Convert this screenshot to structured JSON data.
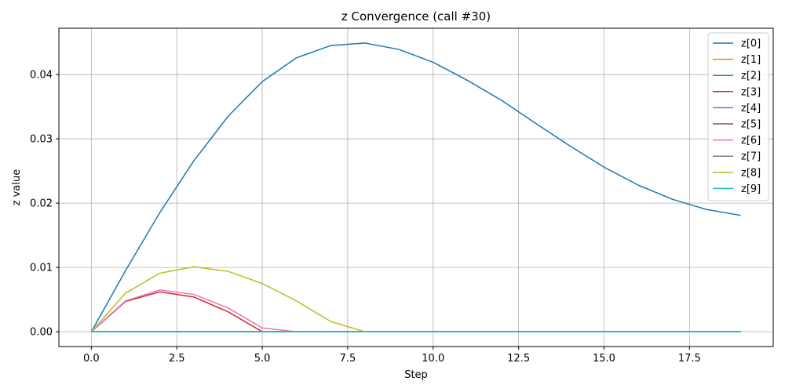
{
  "chart_data": {
    "type": "line",
    "title": "z Convergence (call #30)",
    "xlabel": "Step",
    "ylabel": "z value",
    "xlim": [
      -0.95,
      19.95
    ],
    "ylim": [
      -0.0023,
      0.0472
    ],
    "xticks": [
      0.0,
      2.5,
      5.0,
      7.5,
      10.0,
      12.5,
      15.0,
      17.5
    ],
    "xtick_labels": [
      "0.0",
      "2.5",
      "5.0",
      "7.5",
      "10.0",
      "12.5",
      "15.0",
      "17.5"
    ],
    "yticks": [
      0.0,
      0.01,
      0.02,
      0.03,
      0.04
    ],
    "ytick_labels": [
      "0.00",
      "0.01",
      "0.02",
      "0.03",
      "0.04"
    ],
    "grid": true,
    "legend_position": "top-right",
    "x": [
      0,
      1,
      2,
      3,
      4,
      5,
      6,
      7,
      8,
      9,
      10,
      11,
      12,
      13,
      14,
      15,
      16,
      17,
      18,
      19
    ],
    "series": [
      {
        "name": "z[0]",
        "color": "#1f77b4",
        "values": [
          0.0,
          0.0095,
          0.0185,
          0.0266,
          0.0335,
          0.0389,
          0.0426,
          0.0445,
          0.0449,
          0.0439,
          0.0419,
          0.0391,
          0.036,
          0.0324,
          0.0289,
          0.0256,
          0.0228,
          0.0206,
          0.019,
          0.0181
        ]
      },
      {
        "name": "z[1]",
        "color": "#ff7f0e",
        "values": [
          0,
          0,
          0,
          0,
          0,
          0,
          0,
          0,
          0,
          0,
          0,
          0,
          0,
          0,
          0,
          0,
          0,
          0,
          0,
          0
        ]
      },
      {
        "name": "z[2]",
        "color": "#2ca02c",
        "values": [
          0,
          0,
          0,
          0,
          0,
          0,
          0,
          0,
          0,
          0,
          0,
          0,
          0,
          0,
          0,
          0,
          0,
          0,
          0,
          0
        ]
      },
      {
        "name": "z[3]",
        "color": "#d62728",
        "values": [
          0.0,
          0.0047,
          0.0062,
          0.0054,
          0.0031,
          0.0,
          0,
          0,
          0,
          0,
          0,
          0,
          0,
          0,
          0,
          0,
          0,
          0,
          0,
          0
        ]
      },
      {
        "name": "z[4]",
        "color": "#9467bd",
        "values": [
          0,
          0,
          0,
          0,
          0,
          0,
          0,
          0,
          0,
          0,
          0,
          0,
          0,
          0,
          0,
          0,
          0,
          0,
          0,
          0
        ]
      },
      {
        "name": "z[5]",
        "color": "#8c564b",
        "values": [
          0,
          0,
          0,
          0,
          0,
          0,
          0,
          0,
          0,
          0,
          0,
          0,
          0,
          0,
          0,
          0,
          0,
          0,
          0,
          0
        ]
      },
      {
        "name": "z[6]",
        "color": "#e377c2",
        "values": [
          0.0,
          0.0048,
          0.0065,
          0.0058,
          0.0037,
          0.0006,
          0.0,
          0,
          0,
          0,
          0,
          0,
          0,
          0,
          0,
          0,
          0,
          0,
          0,
          0
        ]
      },
      {
        "name": "z[7]",
        "color": "#7f7f7f",
        "values": [
          0,
          0,
          0,
          0,
          0,
          0,
          0,
          0,
          0,
          0,
          0,
          0,
          0,
          0,
          0,
          0,
          0,
          0,
          0,
          0
        ]
      },
      {
        "name": "z[8]",
        "color": "#bcbd22",
        "values": [
          0.0,
          0.006,
          0.0091,
          0.0101,
          0.0094,
          0.0075,
          0.0048,
          0.0016,
          0.0,
          0,
          0,
          0,
          0,
          0,
          0,
          0,
          0,
          0,
          0,
          0
        ]
      },
      {
        "name": "z[9]",
        "color": "#17becf",
        "values": [
          0,
          0,
          0,
          0,
          0,
          0,
          0,
          0,
          0,
          0,
          0,
          0,
          0,
          0,
          0,
          0,
          0,
          0,
          0,
          0
        ]
      }
    ]
  }
}
